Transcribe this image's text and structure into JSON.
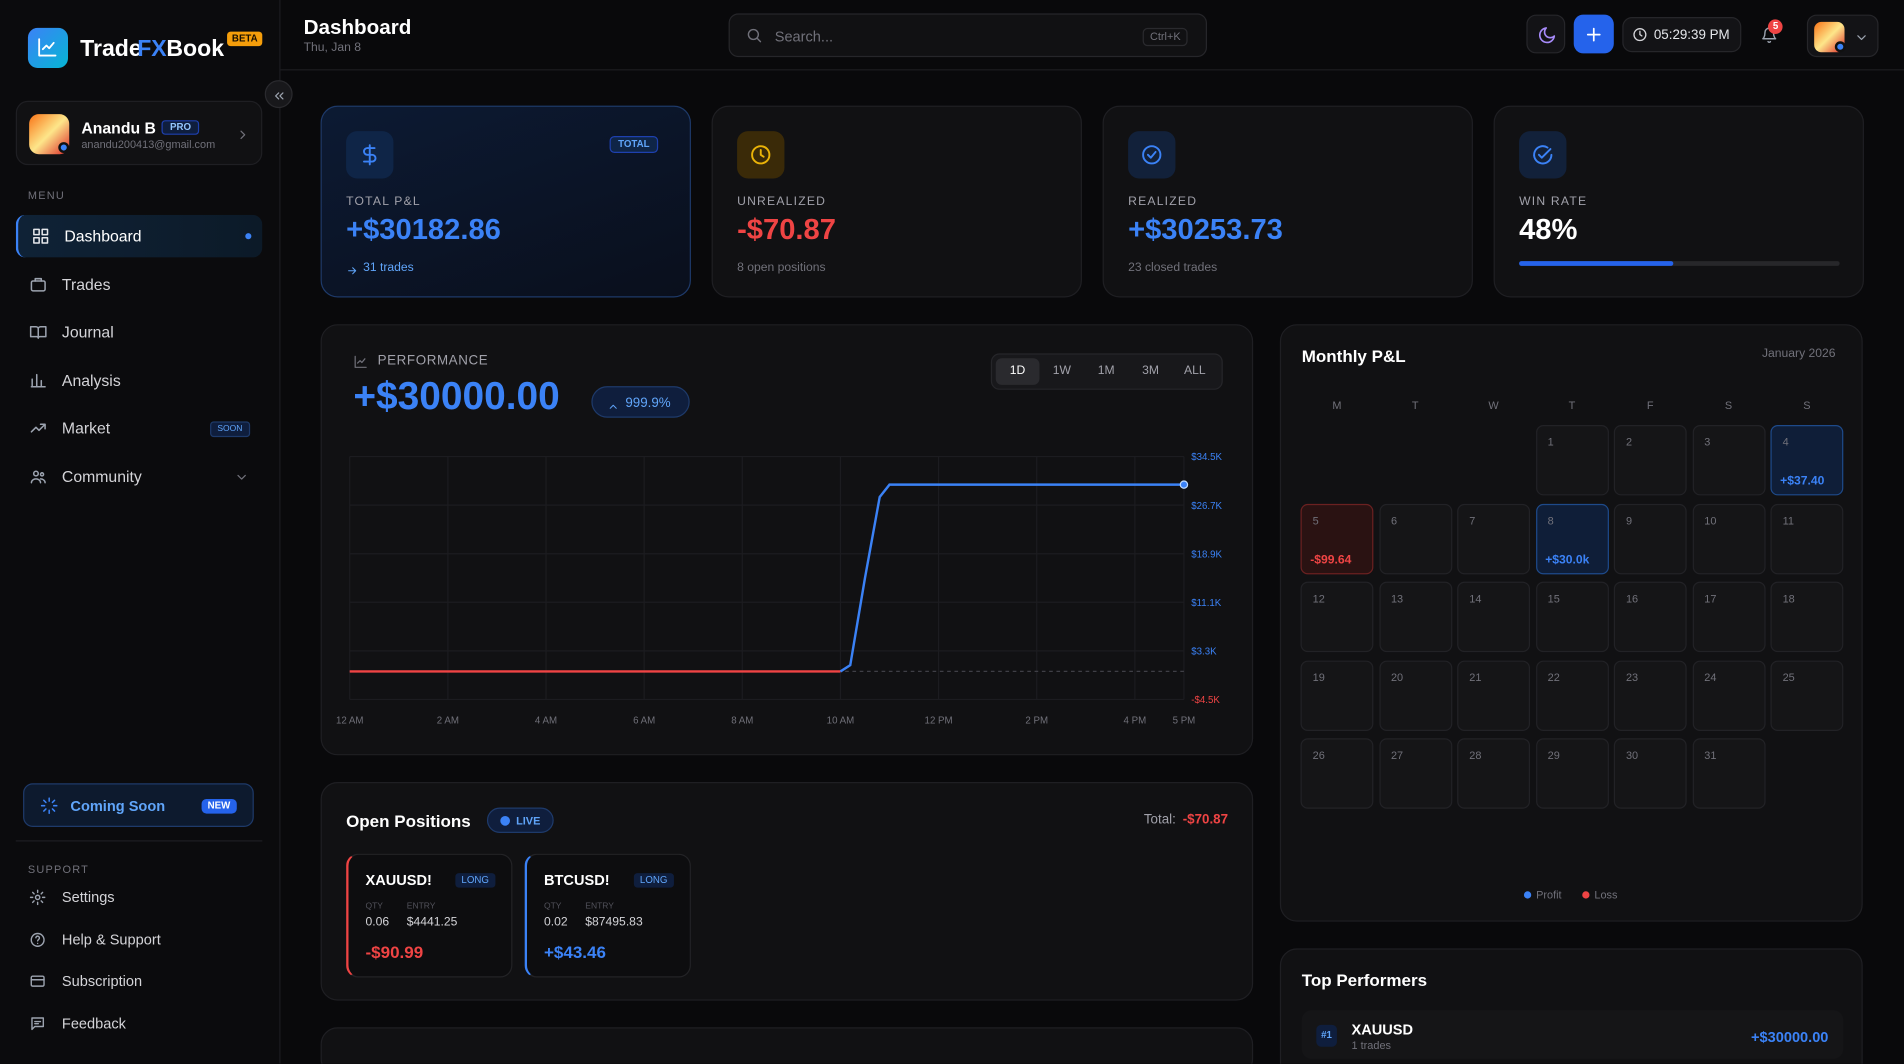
{
  "sidebar": {
    "brand": {
      "part1": "Trade",
      "part2": "FX",
      "part3": "Book",
      "badge": "BETA"
    },
    "user": {
      "name": "Anandu B",
      "badge": "PRO",
      "email": "anandu200413@gmail.com"
    },
    "menu_label": "MENU",
    "menu": [
      {
        "label": "Dashboard"
      },
      {
        "label": "Trades"
      },
      {
        "label": "Journal"
      },
      {
        "label": "Analysis"
      },
      {
        "label": "Market",
        "badge": "SOON"
      },
      {
        "label": "Community"
      }
    ],
    "promo": {
      "label": "Coming Soon",
      "badge": "NEW"
    },
    "support_label": "SUPPORT",
    "support": [
      "Settings",
      "Help & Support",
      "Subscription",
      "Feedback"
    ]
  },
  "header": {
    "title": "Dashboard",
    "date": "Thu, Jan 8",
    "search_placeholder": "Search...",
    "shortcut": "Ctrl+K",
    "clock": "05:29:39 PM",
    "notifications": "5"
  },
  "stats": [
    {
      "label": "TOTAL P&L",
      "value": "+$30182.86",
      "sub": "31 trades",
      "badge": "TOTAL"
    },
    {
      "label": "UNREALIZED",
      "value": "-$70.87",
      "sub": "8 open positions"
    },
    {
      "label": "REALIZED",
      "value": "+$30253.73",
      "sub": "23 closed trades"
    },
    {
      "label": "WIN RATE",
      "value": 48,
      "value_label": "48%"
    }
  ],
  "performance": {
    "label": "PERFORMANCE",
    "value": "+$30000.00",
    "change": "999.9%",
    "ranges": [
      "1D",
      "1W",
      "1M",
      "3M",
      "ALL"
    ],
    "chart": {
      "type": "line",
      "x": [
        0,
        10,
        10.2,
        10.5,
        10.8,
        11,
        17
      ],
      "values": [
        0,
        0,
        1000,
        15000,
        28000,
        30000,
        30000
      ],
      "xlim": [
        0,
        17
      ],
      "xticks": [
        {
          "value": 0,
          "label": "12 AM"
        },
        {
          "value": 2,
          "label": "2 AM"
        },
        {
          "value": 4,
          "label": "4 AM"
        },
        {
          "value": 6,
          "label": "6 AM"
        },
        {
          "value": 8,
          "label": "8 AM"
        },
        {
          "value": 10,
          "label": "10 AM"
        },
        {
          "value": 12,
          "label": "12 PM"
        },
        {
          "value": 14,
          "label": "2 PM"
        },
        {
          "value": 16,
          "label": "4 PM"
        },
        {
          "value": 17,
          "label": "5 PM"
        }
      ],
      "ylim": [
        -4500,
        34500
      ],
      "yticks": [
        {
          "value": 34500,
          "label": "$34.5K"
        },
        {
          "value": 26700,
          "label": "$26.7K"
        },
        {
          "value": 18900,
          "label": "$18.9K"
        },
        {
          "value": 11100,
          "label": "$11.1K"
        },
        {
          "value": 3300,
          "label": "$3.3K"
        },
        {
          "value": -4500,
          "label": "-$4.5K"
        }
      ],
      "grid": true,
      "color": "#3b82f6",
      "loss_color": "#ef4444"
    }
  },
  "open_positions": {
    "title": "Open Positions",
    "badge": "LIVE",
    "total_label": "Total:",
    "total": "-$70.87",
    "positions": [
      {
        "symbol": "XAUUSD!",
        "side": "LONG",
        "qty_label": "QTY",
        "qty": "0.06",
        "entry_label": "ENTRY",
        "entry": "$4441.25",
        "pnl": "-$90.99"
      },
      {
        "symbol": "BTCUSD!",
        "side": "LONG",
        "qty_label": "QTY",
        "qty": "0.02",
        "entry_label": "ENTRY",
        "entry": "$87495.83",
        "pnl": "+$43.46"
      }
    ]
  },
  "calendar": {
    "title": "Monthly P&L",
    "month": "January 2026",
    "weekdays": [
      "M",
      "T",
      "W",
      "T",
      "F",
      "S",
      "S"
    ],
    "first_weekday": 3,
    "days": [
      {
        "day": 1
      },
      {
        "day": 2
      },
      {
        "day": 3
      },
      {
        "day": 4,
        "pnl": "+$37.40"
      },
      {
        "day": 5,
        "pnl": "-$99.64"
      },
      {
        "day": 6
      },
      {
        "day": 7
      },
      {
        "day": 8,
        "pnl": "+$30.0k"
      },
      {
        "day": 9
      },
      {
        "day": 10
      },
      {
        "day": 11
      },
      {
        "day": 12
      },
      {
        "day": 13
      },
      {
        "day": 14
      },
      {
        "day": 15
      },
      {
        "day": 16
      },
      {
        "day": 17
      },
      {
        "day": 18
      },
      {
        "day": 19
      },
      {
        "day": 20
      },
      {
        "day": 21
      },
      {
        "day": 22
      },
      {
        "day": 23
      },
      {
        "day": 24
      },
      {
        "day": 25
      },
      {
        "day": 26
      },
      {
        "day": 27
      },
      {
        "day": 28
      },
      {
        "day": 29
      },
      {
        "day": 30
      },
      {
        "day": 31
      }
    ],
    "legend": [
      "Profit",
      "Loss"
    ]
  },
  "top_performers": {
    "title": "Top Performers",
    "items": [
      {
        "rank": "#1",
        "symbol": "XAUUSD",
        "trades": "1 trades",
        "pnl": "+$30000.00"
      }
    ]
  }
}
